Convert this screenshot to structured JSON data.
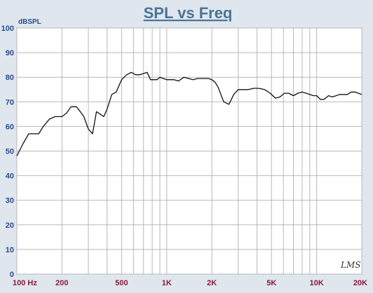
{
  "chart_data": {
    "type": "line",
    "title": "SPL vs Freq",
    "ylabel": "dBSPL",
    "xlabel": "",
    "xscale": "log",
    "xlim": [
      100,
      20000
    ],
    "ylim": [
      0,
      100
    ],
    "yticks": [
      0,
      10,
      20,
      30,
      40,
      50,
      60,
      70,
      80,
      90,
      100
    ],
    "xtick_labels": [
      {
        "value": 100,
        "label": "100 Hz"
      },
      {
        "value": 200,
        "label": "200"
      },
      {
        "value": 500,
        "label": "500"
      },
      {
        "value": 1000,
        "label": "1K"
      },
      {
        "value": 2000,
        "label": "2K"
      },
      {
        "value": 5000,
        "label": "5K"
      },
      {
        "value": 10000,
        "label": "10K"
      },
      {
        "value": 20000,
        "label": "20K"
      }
    ],
    "grid": true,
    "series": [
      {
        "x": [
          100,
          110,
          120,
          130,
          140,
          150,
          165,
          180,
          200,
          215,
          230,
          250,
          265,
          280,
          300,
          320,
          340,
          360,
          380,
          400,
          430,
          460,
          500,
          540,
          580,
          620,
          660,
          700,
          740,
          780,
          820,
          860,
          900,
          950,
          1000,
          1060,
          1120,
          1200,
          1300,
          1400,
          1500,
          1600,
          1700,
          1800,
          1900,
          2000,
          2100,
          2200,
          2400,
          2600,
          2800,
          3000,
          3200,
          3500,
          3800,
          4100,
          4500,
          4900,
          5300,
          5700,
          6100,
          6500,
          7000,
          7500,
          8000,
          8500,
          9000,
          9500,
          10000,
          10600,
          11200,
          12000,
          12700,
          13500,
          14200,
          15000,
          16000,
          17000,
          18000,
          19000,
          20000
        ],
        "y": [
          48,
          53,
          57,
          57,
          57,
          60,
          63,
          64,
          64,
          65.5,
          68,
          68,
          66,
          64,
          59,
          57,
          66,
          65,
          64,
          67,
          73,
          74,
          79,
          81,
          82,
          81,
          81,
          81.5,
          82,
          79,
          79,
          79,
          80,
          79.5,
          79,
          79,
          79,
          78.5,
          80,
          79.5,
          79,
          79.5,
          79.5,
          79.5,
          79.5,
          79,
          78,
          76,
          70,
          69,
          73,
          75,
          75,
          75,
          75.5,
          75.5,
          75,
          73.5,
          71.5,
          72,
          73.5,
          73.5,
          72.5,
          73.5,
          74,
          73.5,
          73,
          72.5,
          72.5,
          71,
          71,
          72.5,
          72,
          72.5,
          73,
          73,
          73,
          74,
          74,
          73.5,
          73
        ]
      }
    ],
    "annotation": "LMS",
    "colors": {
      "background": "#dfe6ee",
      "plot_bg": "#ffffff",
      "grid": "#b8b8b8",
      "line": "#111111",
      "title": "#4a7496",
      "ytick": "#2b4c8c",
      "xtick": "#8b1a3a"
    }
  }
}
